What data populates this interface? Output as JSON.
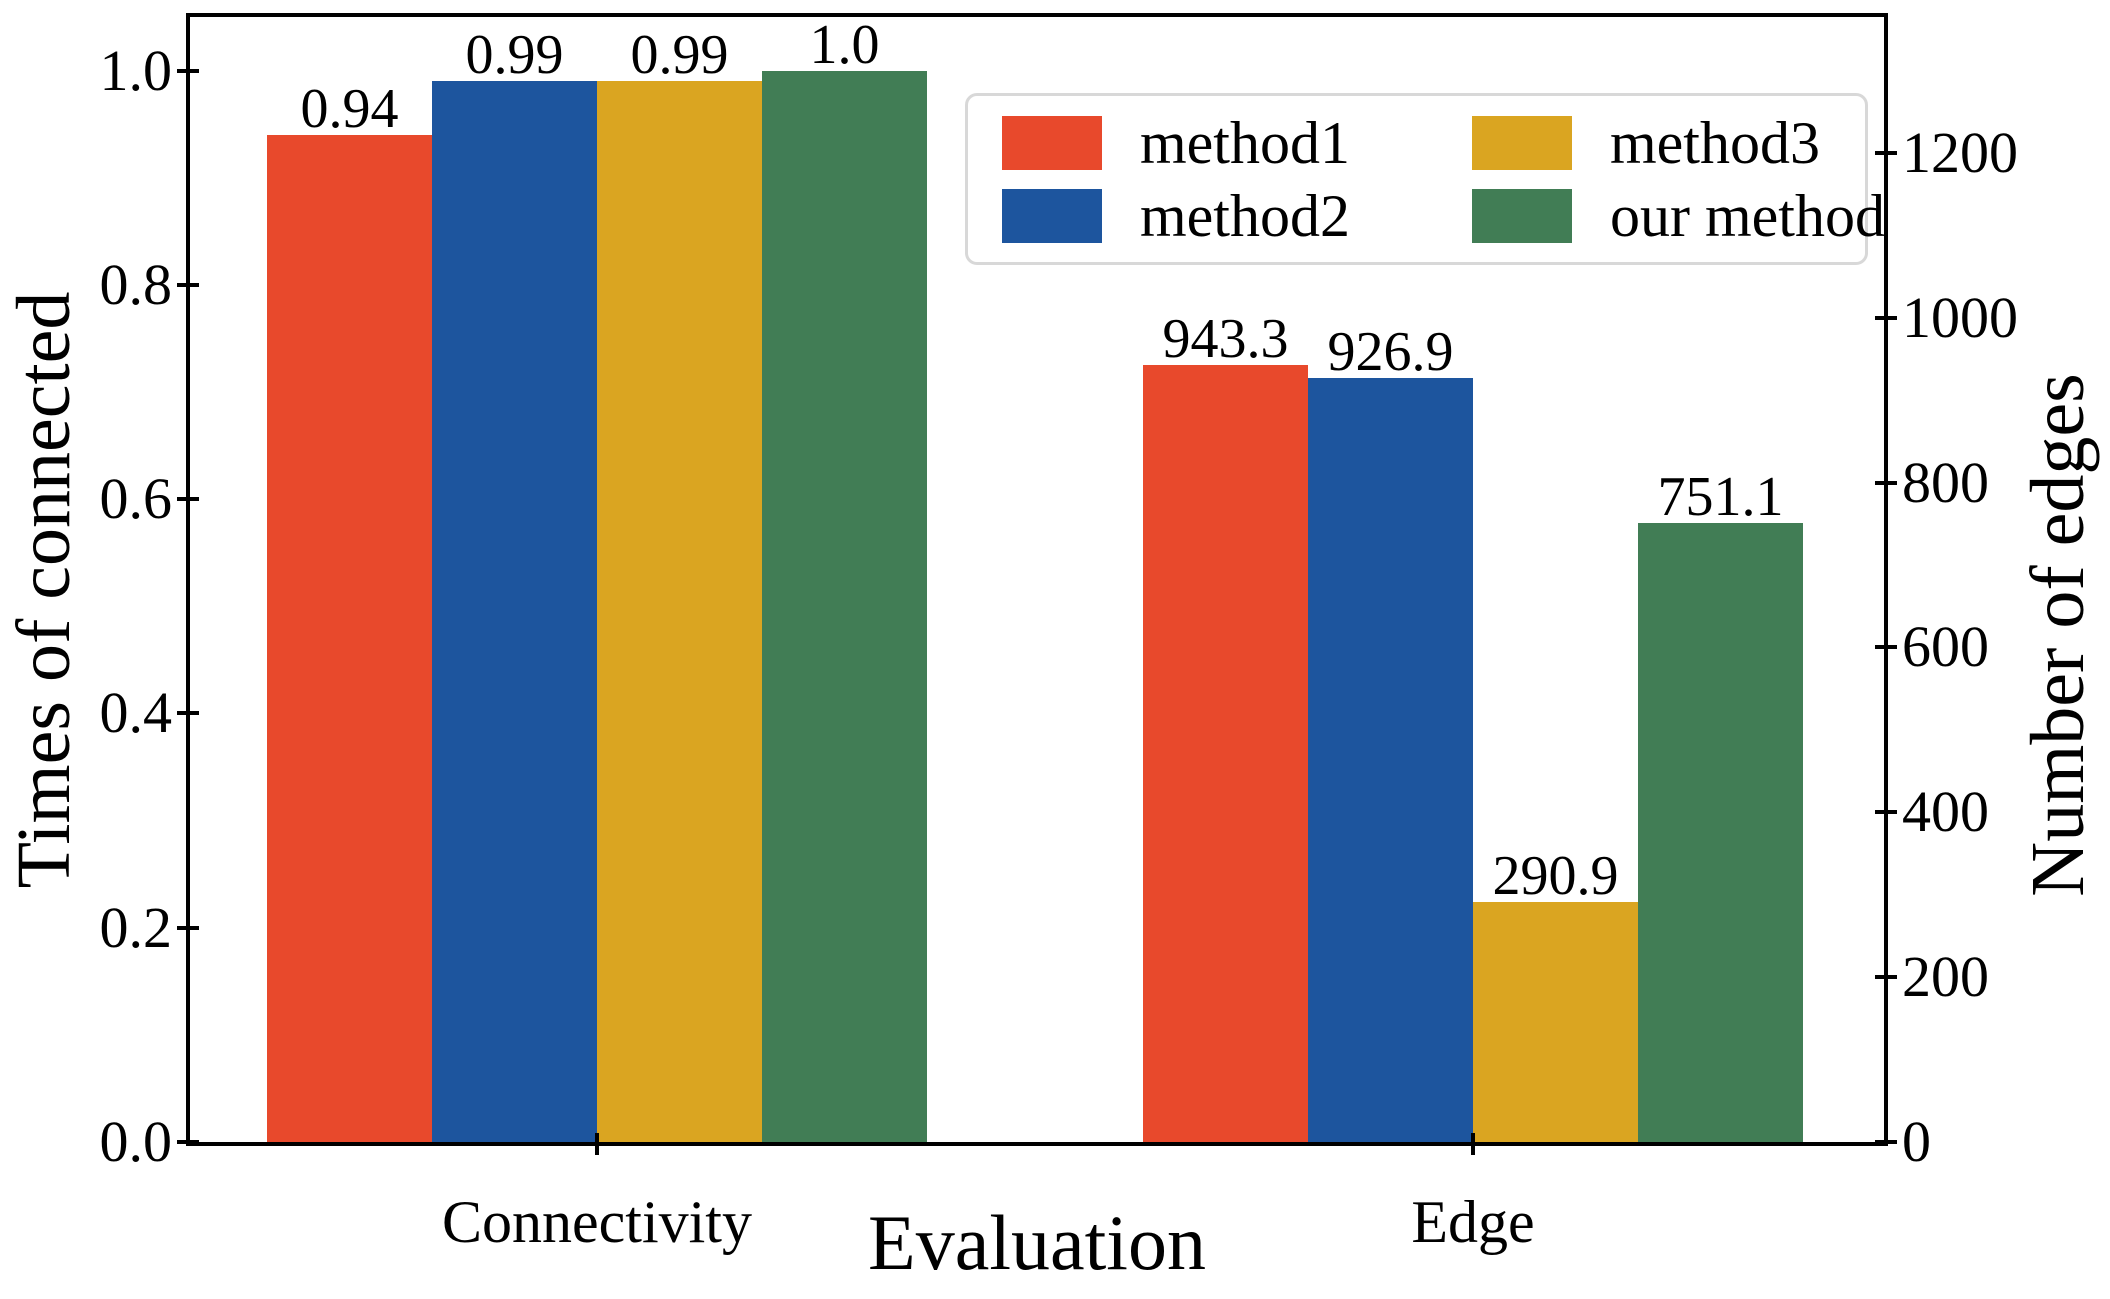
{
  "chart_data": {
    "type": "bar",
    "title": "",
    "categories": [
      "Connectivity",
      "Edge"
    ],
    "series": [
      {
        "name": "method1",
        "color": "#E8492C",
        "values": [
          0.94,
          943.3
        ],
        "value_labels": [
          "0.94",
          "943.3"
        ]
      },
      {
        "name": "method2",
        "color": "#1D559E",
        "values": [
          0.99,
          926.9
        ],
        "value_labels": [
          "0.99",
          "926.9"
        ]
      },
      {
        "name": "method3",
        "color": "#DAA521",
        "values": [
          0.99,
          290.9
        ],
        "value_labels": [
          "0.99",
          "290.9"
        ]
      },
      {
        "name": "our method",
        "color": "#417D55",
        "values": [
          1.0,
          751.1
        ],
        "value_labels": [
          "1.0",
          "751.1"
        ]
      }
    ],
    "axes": {
      "xlabel": "Evaluation",
      "ylabel_left": "Times of connected",
      "ylabel_right": "Number of edges",
      "ylim_left": [
        0,
        1.05
      ],
      "ylim_right": [
        0,
        1365
      ],
      "yticks_left": [
        "0.0",
        "0.2",
        "0.4",
        "0.6",
        "0.8",
        "1.0"
      ],
      "yticks_right": [
        "0",
        "200",
        "400",
        "600",
        "800",
        "1000",
        "1200"
      ]
    },
    "legend": {
      "position": "upper right",
      "entries": [
        "method1",
        "method2",
        "method3",
        "our method"
      ]
    },
    "grid": false,
    "notes": "Connectivity group is read on the left axis; Edge group is read on the right axis",
    "colors": {
      "text": "#000000",
      "spine": "#000000",
      "legend_border": "#D8D8D8",
      "background": "#FFFFFF"
    }
  }
}
